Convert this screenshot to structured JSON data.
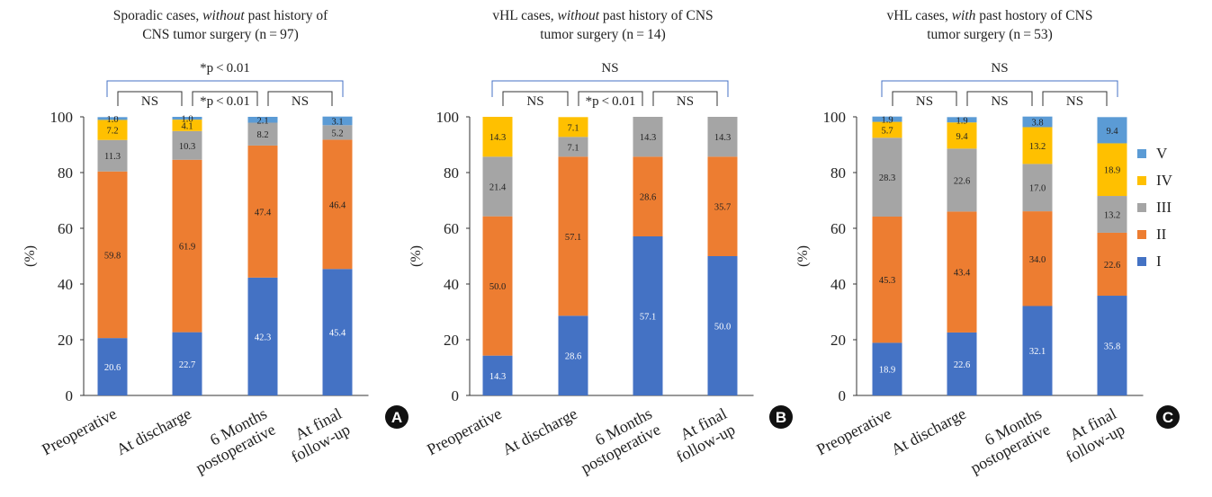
{
  "legend": {
    "items": [
      {
        "label": "V",
        "color": "#5B9BD5"
      },
      {
        "label": "IV",
        "color": "#FFC000"
      },
      {
        "label": "III",
        "color": "#A5A5A5"
      },
      {
        "label": "II",
        "color": "#ED7D31"
      },
      {
        "label": "I",
        "color": "#4472C4"
      }
    ]
  },
  "chart_data": [
    {
      "type": "bar",
      "stacked": true,
      "panel_label": "A",
      "title_parts": [
        [
          {
            "t": "Sporadic cases, "
          },
          {
            "t": "without",
            "i": true
          },
          {
            "t": " past history of"
          }
        ],
        [
          {
            "t": "CNS tumor surgery (n = 97)"
          }
        ]
      ],
      "ylabel": "(%)",
      "ylim": [
        0,
        100
      ],
      "yticks": [
        0,
        20,
        40,
        60,
        80,
        100
      ],
      "categories": [
        [
          "Preoperative"
        ],
        [
          "At discharge"
        ],
        [
          "6 Months",
          "postoperative"
        ],
        [
          "At final",
          "follow-up"
        ]
      ],
      "series": [
        {
          "name": "I",
          "color": "#4472C4",
          "values": [
            20.6,
            22.7,
            42.3,
            45.4
          ],
          "labels": [
            "20.6",
            "22.7",
            "42.3",
            "45.4"
          ]
        },
        {
          "name": "II",
          "color": "#ED7D31",
          "values": [
            59.8,
            61.9,
            47.4,
            46.4
          ],
          "labels": [
            "59.8",
            "61.9",
            "47.4",
            "46.4"
          ]
        },
        {
          "name": "III",
          "color": "#A5A5A5",
          "values": [
            11.3,
            10.3,
            8.2,
            5.2
          ],
          "labels": [
            "11.3",
            "10.3",
            "8.2",
            "5.2"
          ]
        },
        {
          "name": "IV",
          "color": "#FFC000",
          "values": [
            7.2,
            4.1,
            0,
            0
          ],
          "labels": [
            "7.2",
            "4.1",
            "",
            ""
          ]
        },
        {
          "name": "V",
          "color": "#5B9BD5",
          "values": [
            1.0,
            1.0,
            2.1,
            3.1
          ],
          "labels": [
            "1.0",
            "1.0",
            "2.1",
            "3.1"
          ]
        }
      ],
      "brackets": [
        {
          "from": 0,
          "to": 3,
          "level": 0,
          "text": "*p < 0.01"
        },
        {
          "from": 0,
          "to": 1,
          "level": 1,
          "text": "NS"
        },
        {
          "from": 1,
          "to": 2,
          "level": 1,
          "text": "*p < 0.01"
        },
        {
          "from": 2,
          "to": 3,
          "level": 1,
          "text": "NS"
        }
      ]
    },
    {
      "type": "bar",
      "stacked": true,
      "panel_label": "B",
      "title_parts": [
        [
          {
            "t": "vHL cases, "
          },
          {
            "t": "without",
            "i": true
          },
          {
            "t": " past history of CNS"
          }
        ],
        [
          {
            "t": "tumor surgery (n = 14)"
          }
        ]
      ],
      "ylabel": "(%)",
      "ylim": [
        0,
        100
      ],
      "yticks": [
        0,
        20,
        40,
        60,
        80,
        100
      ],
      "categories": [
        [
          "Preoperative"
        ],
        [
          "At discharge"
        ],
        [
          "6 Months",
          "postoperative"
        ],
        [
          "At final",
          "follow-up"
        ]
      ],
      "series": [
        {
          "name": "I",
          "color": "#4472C4",
          "values": [
            14.3,
            28.6,
            57.1,
            50.0
          ],
          "labels": [
            "14.3",
            "28.6",
            "57.1",
            "50.0"
          ]
        },
        {
          "name": "II",
          "color": "#ED7D31",
          "values": [
            50.0,
            57.1,
            28.6,
            35.7
          ],
          "labels": [
            "50.0",
            "57.1",
            "28.6",
            "35.7"
          ]
        },
        {
          "name": "III",
          "color": "#A5A5A5",
          "values": [
            21.4,
            7.1,
            14.3,
            14.3
          ],
          "labels": [
            "21.4",
            "7.1",
            "14.3",
            "14.3"
          ]
        },
        {
          "name": "IV",
          "color": "#FFC000",
          "values": [
            14.3,
            7.1,
            0,
            0
          ],
          "labels": [
            "14.3",
            "7.1",
            "",
            ""
          ]
        },
        {
          "name": "V",
          "color": "#5B9BD5",
          "values": [
            0,
            0,
            0,
            0
          ],
          "labels": [
            "",
            "",
            "",
            ""
          ]
        }
      ],
      "brackets": [
        {
          "from": 0,
          "to": 3,
          "level": 0,
          "text": "NS"
        },
        {
          "from": 0,
          "to": 1,
          "level": 1,
          "text": "NS"
        },
        {
          "from": 1,
          "to": 2,
          "level": 1,
          "text": "*p < 0.01"
        },
        {
          "from": 2,
          "to": 3,
          "level": 1,
          "text": "NS"
        }
      ]
    },
    {
      "type": "bar",
      "stacked": true,
      "panel_label": "C",
      "title_parts": [
        [
          {
            "t": "vHL cases, "
          },
          {
            "t": "with",
            "i": true
          },
          {
            "t": " past hostory of CNS"
          }
        ],
        [
          {
            "t": "tumor surgery (n = 53)"
          }
        ]
      ],
      "ylabel": "(%)",
      "ylim": [
        0,
        100
      ],
      "yticks": [
        0,
        20,
        40,
        60,
        80,
        100
      ],
      "categories": [
        [
          "Preoperative"
        ],
        [
          "At discharge"
        ],
        [
          "6 Months",
          "postoperative"
        ],
        [
          "At final",
          "follow-up"
        ]
      ],
      "series": [
        {
          "name": "I",
          "color": "#4472C4",
          "values": [
            18.9,
            22.6,
            32.1,
            35.8
          ],
          "labels": [
            "18.9",
            "22.6",
            "32.1",
            "35.8"
          ]
        },
        {
          "name": "II",
          "color": "#ED7D31",
          "values": [
            45.3,
            43.4,
            34.0,
            22.6
          ],
          "labels": [
            "45.3",
            "43.4",
            "34.0",
            "22.6"
          ]
        },
        {
          "name": "III",
          "color": "#A5A5A5",
          "values": [
            28.3,
            22.6,
            17.0,
            13.2
          ],
          "labels": [
            "28.3",
            "22.6",
            "17.0",
            "13.2"
          ]
        },
        {
          "name": "IV",
          "color": "#FFC000",
          "values": [
            5.7,
            9.4,
            13.2,
            18.9
          ],
          "labels": [
            "5.7",
            "9.4",
            "13.2",
            "18.9"
          ]
        },
        {
          "name": "V",
          "color": "#5B9BD5",
          "values": [
            1.9,
            1.9,
            3.8,
            9.4
          ],
          "labels": [
            "1.9",
            "1.9",
            "3.8",
            "9.4"
          ]
        }
      ],
      "brackets": [
        {
          "from": 0,
          "to": 3,
          "level": 0,
          "text": "NS"
        },
        {
          "from": 0,
          "to": 1,
          "level": 1,
          "text": "NS"
        },
        {
          "from": 1,
          "to": 2,
          "level": 1,
          "text": "NS"
        },
        {
          "from": 2,
          "to": 3,
          "level": 1,
          "text": "NS"
        }
      ]
    }
  ]
}
